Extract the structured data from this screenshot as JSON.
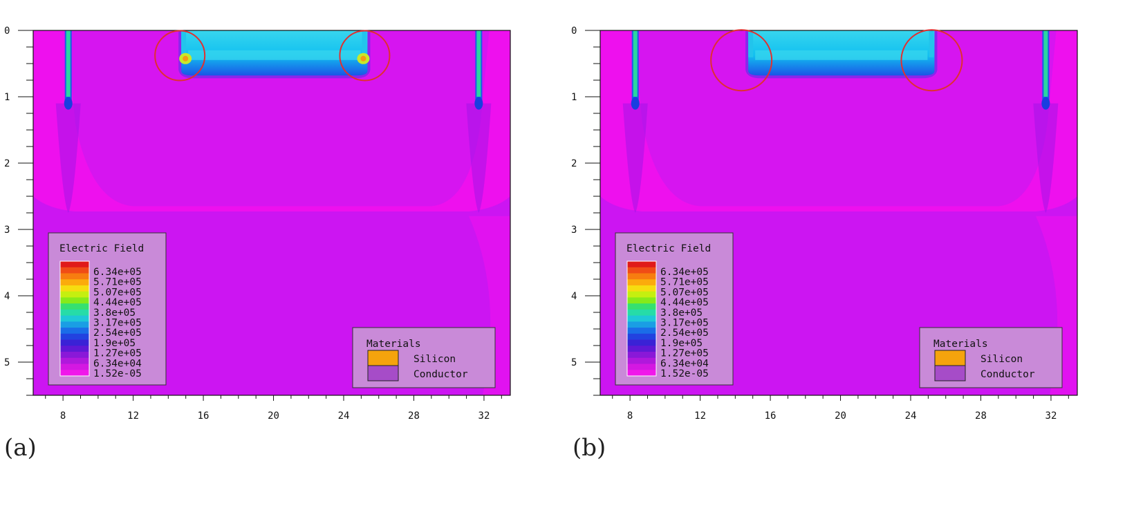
{
  "panels": [
    {
      "id": "a",
      "caption": "(a)",
      "highlight": "top-corners",
      "x_ticks": [
        "8",
        "12",
        "16",
        "20",
        "24",
        "28",
        "32"
      ],
      "y_ticks": [
        "0",
        "1",
        "2",
        "3",
        "4",
        "5"
      ]
    },
    {
      "id": "b",
      "caption": "(b)",
      "highlight": "top-corners",
      "x_ticks": [
        "8",
        "12",
        "16",
        "20",
        "24",
        "28",
        "32"
      ],
      "y_ticks": [
        "0",
        "1",
        "2",
        "3",
        "4",
        "5"
      ]
    }
  ],
  "legend": {
    "title": "Electric Field",
    "values": [
      "6.34e+05",
      "5.71e+05",
      "5.07e+05",
      "4.44e+05",
      "3.8e+05",
      "3.17e+05",
      "2.54e+05",
      "1.9e+05",
      "1.27e+05",
      "6.34e+04",
      "1.52e-05"
    ],
    "colors": [
      "#e01a1a",
      "#f04c16",
      "#f77d10",
      "#fbab0c",
      "#f6dd10",
      "#c5ef10",
      "#86ea1a",
      "#36e070",
      "#26dca8",
      "#1ec8d8",
      "#1a9ee4",
      "#1a6de8",
      "#2242e0",
      "#3a22d6",
      "#6018d6",
      "#8a18d8",
      "#b018dc",
      "#d418e2",
      "#f018ea"
    ]
  },
  "materials": {
    "title": "Materials",
    "items": [
      {
        "name": "Silicon",
        "color": "#f5a30d"
      },
      {
        "name": "Conductor",
        "color": "#a64cc8"
      }
    ]
  },
  "colors": {
    "background": "#ee10ee",
    "low_field": "#c516f2",
    "mid_field": "#a313f0",
    "trench": "#12c0f0",
    "trench_edge": "#1a55e6",
    "highlight_circle": "#e03030"
  }
}
